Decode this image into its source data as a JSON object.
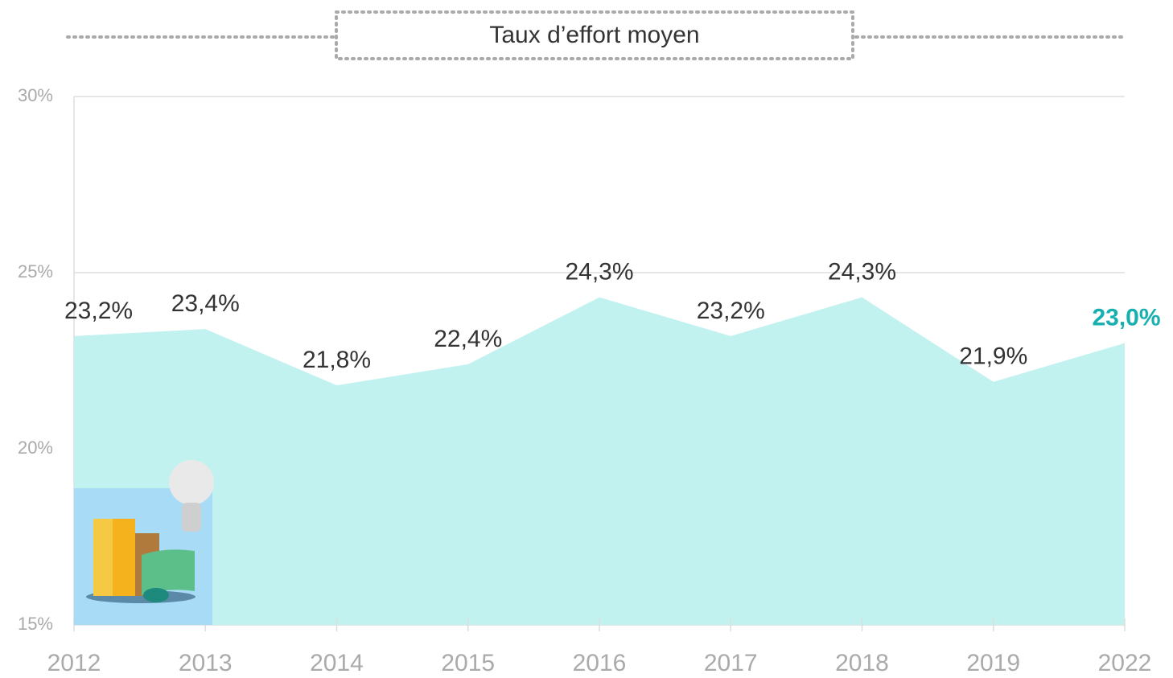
{
  "chart_data": {
    "type": "area",
    "title": "Taux d’effort moyen",
    "categories": [
      "2012",
      "2013",
      "2014",
      "2015",
      "2016",
      "2017",
      "2018",
      "2019",
      "2022"
    ],
    "values": [
      23.2,
      23.4,
      21.8,
      22.4,
      24.3,
      23.2,
      24.3,
      21.9,
      23.0
    ],
    "value_labels": [
      "23,2%",
      "23,4%",
      "21,8%",
      "22,4%",
      "24,3%",
      "23,2%",
      "24,3%",
      "21,9%",
      "23,0%"
    ],
    "value_label_colors": [
      "#333333",
      "#333333",
      "#333333",
      "#333333",
      "#333333",
      "#333333",
      "#333333",
      "#333333",
      "#17b0b0"
    ],
    "color": "#c2f2f0",
    "ylim": [
      15,
      30
    ],
    "yticks": [
      {
        "value": 15,
        "label": "15%"
      },
      {
        "value": 20,
        "label": "20%"
      },
      {
        "value": 25,
        "label": "25%"
      },
      {
        "value": 30,
        "label": "30%"
      }
    ],
    "grid": true
  }
}
